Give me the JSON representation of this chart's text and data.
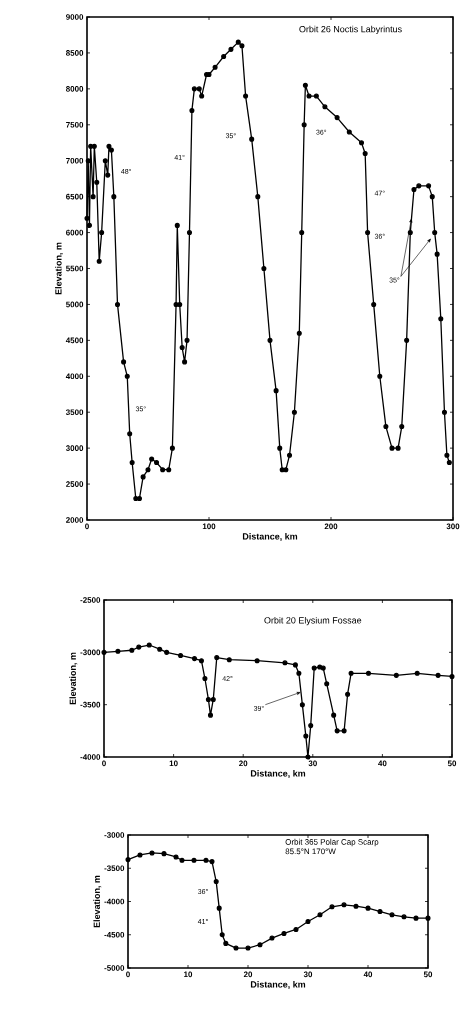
{
  "chart_data": [
    {
      "type": "line",
      "title": "Orbit 26 Noctis Labyrintus",
      "xlabel": "Distance, km",
      "ylabel": "Elevation, m",
      "marker": "circle",
      "xlim": [
        0,
        300
      ],
      "xticks": [
        0,
        100,
        200,
        300
      ],
      "ylim": [
        2000,
        9000
      ],
      "yticks": [
        2000,
        2500,
        3000,
        3500,
        4000,
        4500,
        5000,
        5500,
        6000,
        6500,
        7000,
        7500,
        8000,
        8500,
        9000
      ],
      "series": [
        {
          "color": "#000000",
          "x": [
            0,
            1,
            2,
            3,
            5,
            6,
            8,
            10,
            12,
            15,
            17,
            18,
            20,
            22,
            25,
            30,
            33,
            35,
            37,
            40,
            43,
            46,
            50,
            53,
            57,
            62,
            67,
            70,
            73,
            74,
            76,
            78,
            80,
            82,
            84,
            86,
            88,
            92,
            94,
            98,
            100,
            105,
            112,
            118,
            124,
            127,
            130,
            135,
            140,
            145,
            150,
            155,
            158,
            160,
            163,
            166,
            170,
            174,
            176,
            178,
            179,
            182,
            188,
            195,
            205,
            215,
            225,
            228,
            230,
            235,
            240,
            245,
            250,
            255,
            258,
            262,
            265,
            268,
            272,
            280,
            283,
            285,
            287,
            290,
            293,
            295,
            297
          ],
          "values": [
            6200,
            7000,
            6100,
            7200,
            6500,
            7200,
            6700,
            5600,
            6000,
            7000,
            6800,
            7200,
            7150,
            6500,
            5000,
            4200,
            4000,
            3200,
            2800,
            2300,
            2300,
            2600,
            2700,
            2850,
            2800,
            2700,
            2700,
            3000,
            5000,
            6100,
            5000,
            4400,
            4200,
            4500,
            6000,
            7700,
            8000,
            8000,
            7900,
            8200,
            8200,
            8300,
            8450,
            8550,
            8650,
            8600,
            7900,
            7300,
            6500,
            5500,
            4500,
            3800,
            3000,
            2700,
            2700,
            2900,
            3500,
            4600,
            6000,
            7500,
            8050,
            7900,
            7900,
            7750,
            7600,
            7400,
            7250,
            7100,
            6000,
            5000,
            4000,
            3300,
            3000,
            3000,
            3300,
            4500,
            6000,
            6600,
            6650,
            6650,
            6500,
            6000,
            5700,
            4800,
            3500,
            2900,
            2800
          ]
        }
      ],
      "annotations": [
        "48°",
        "41°",
        "35°",
        "36°",
        "47°",
        "36°",
        {
          "text": "35°",
          "x": 266,
          "y": 6200
        },
        "35°"
      ]
    },
    {
      "type": "line",
      "title": "Orbit 20 Elysium Fossae",
      "xlabel": "Distance, km",
      "ylabel": "Elevation, m",
      "marker": "circle",
      "xlim": [
        0,
        50
      ],
      "xticks": [
        0,
        10,
        20,
        30,
        40,
        50
      ],
      "ylim": [
        -4000,
        -2500
      ],
      "yticks": [
        -4000,
        -3500,
        -3000,
        -2500
      ],
      "series": [
        {
          "color": "#000000",
          "x": [
            0,
            2,
            4,
            5,
            6.5,
            8,
            9,
            11,
            13,
            14,
            14.5,
            15,
            15.3,
            15.7,
            16.2,
            18,
            22,
            26,
            27.5,
            28,
            28.5,
            29,
            29.3,
            29.7,
            30.2,
            31,
            31.5,
            32,
            33,
            33.5,
            34.5,
            35,
            35.5,
            38,
            42,
            45,
            48,
            50
          ],
          "values": [
            -3000,
            -2990,
            -2980,
            -2950,
            -2930,
            -2970,
            -3000,
            -3030,
            -3060,
            -3080,
            -3250,
            -3450,
            -3600,
            -3450,
            -3050,
            -3070,
            -3080,
            -3100,
            -3120,
            -3200,
            -3500,
            -3800,
            -4000,
            -3700,
            -3150,
            -3140,
            -3150,
            -3300,
            -3600,
            -3750,
            -3750,
            -3400,
            -3200,
            -3200,
            -3220,
            -3200,
            -3220,
            -3230
          ]
        }
      ],
      "annotations": [
        "42°",
        {
          "text": "39°",
          "x": 28.3,
          "y": -3380
        }
      ]
    },
    {
      "type": "line",
      "title": "Orbit 365 Polar Cap Scarp",
      "subtitle": "85.5°N 170°W",
      "xlabel": "Distance, km",
      "ylabel": "Elevation, m",
      "marker": "circle",
      "xlim": [
        0,
        50
      ],
      "xticks": [
        0,
        10,
        20,
        30,
        40,
        50
      ],
      "ylim": [
        -5000,
        -3000
      ],
      "yticks": [
        -5000,
        -4500,
        -4000,
        -3500,
        -3000
      ],
      "series": [
        {
          "color": "#000000",
          "x": [
            0,
            2,
            4,
            6,
            8,
            9,
            11,
            13,
            14,
            14.7,
            15.2,
            15.7,
            16.3,
            18,
            20,
            22,
            24,
            26,
            28,
            30,
            32,
            34,
            36,
            38,
            40,
            42,
            44,
            46,
            48,
            50
          ],
          "values": [
            -3370,
            -3300,
            -3270,
            -3280,
            -3330,
            -3380,
            -3380,
            -3380,
            -3400,
            -3700,
            -4100,
            -4500,
            -4630,
            -4700,
            -4700,
            -4650,
            -4550,
            -4480,
            -4420,
            -4300,
            -4200,
            -4080,
            -4050,
            -4070,
            -4100,
            -4150,
            -4200,
            -4230,
            -4250,
            -4250
          ]
        }
      ],
      "annotations": [
        "36°",
        "41°"
      ]
    }
  ]
}
